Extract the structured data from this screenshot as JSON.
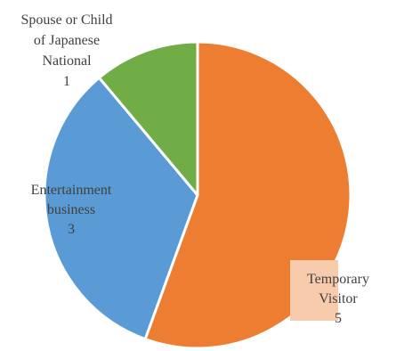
{
  "chart_data": {
    "type": "pie",
    "title": "",
    "slices": [
      {
        "label_lines": [
          "Temporary",
          "Visitor"
        ],
        "value": 5,
        "value_text": "5",
        "color": "#ED7D31"
      },
      {
        "label_lines": [
          "Entertainment",
          "business"
        ],
        "value": 3,
        "value_text": "3",
        "color": "#5B9BD5"
      },
      {
        "label_lines": [
          "Spouse or Child",
          "of Japanese",
          "National"
        ],
        "value": 1,
        "value_text": "1",
        "color": "#70AD47"
      }
    ],
    "label_highlight_color": "#F8CBAD"
  }
}
